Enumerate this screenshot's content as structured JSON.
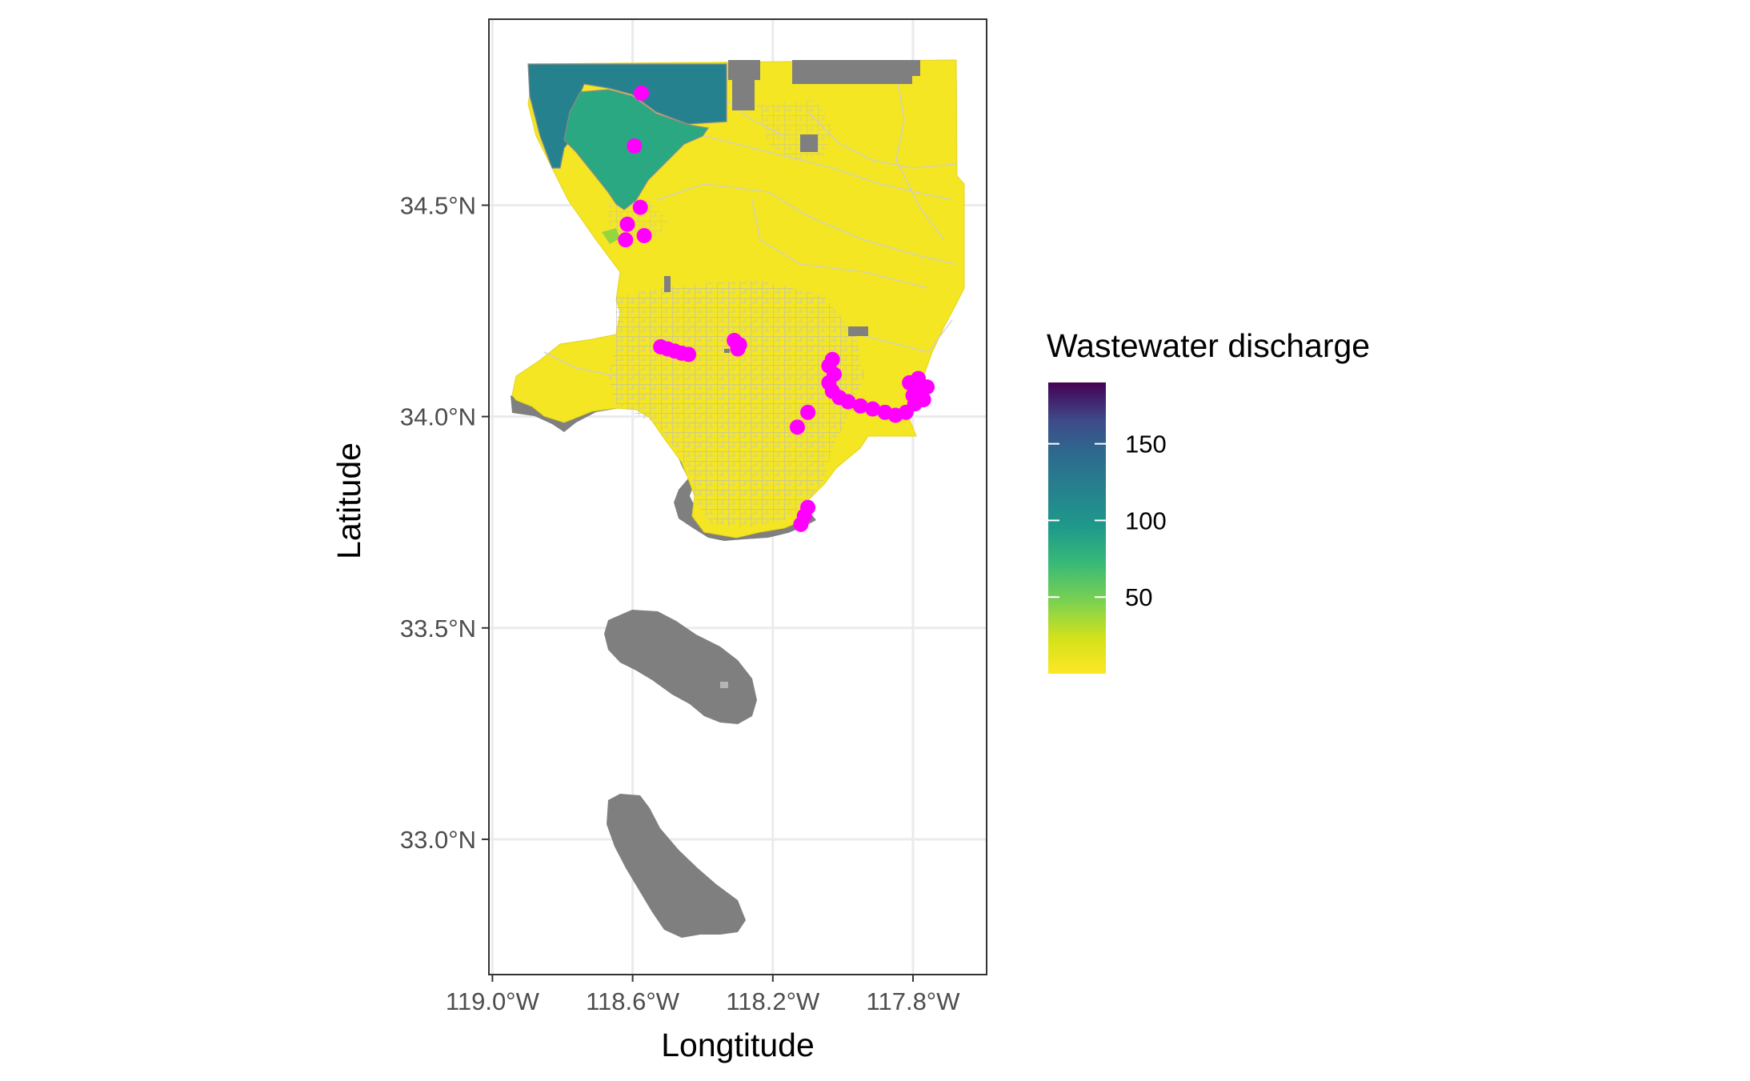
{
  "chart_data": {
    "type": "map",
    "title": "",
    "xlabel": "Longtitude",
    "ylabel": "Latitude",
    "x_ticks": [
      {
        "value": -119.0,
        "label": "119.0°W"
      },
      {
        "value": -118.6,
        "label": "118.6°W"
      },
      {
        "value": -118.2,
        "label": "118.2°W"
      },
      {
        "value": -117.8,
        "label": "117.8°W"
      }
    ],
    "y_ticks": [
      {
        "value": 34.5,
        "label": "34.5°N"
      },
      {
        "value": 34.0,
        "label": "34.0°N"
      },
      {
        "value": 33.5,
        "label": "33.5°N"
      },
      {
        "value": 33.0,
        "label": "33.0°N"
      }
    ],
    "xlim": [
      -119.01,
      -117.59
    ],
    "ylim": [
      32.68,
      34.94
    ],
    "grid": true,
    "legend": {
      "title": "Wastewater discharge",
      "position": "right",
      "scale": "viridis (reversed)",
      "range": [
        0,
        190
      ],
      "breaks": [
        {
          "value": 150,
          "label": "150"
        },
        {
          "value": 100,
          "label": "100"
        },
        {
          "value": 50,
          "label": "50"
        }
      ]
    },
    "region_fill_values": {
      "northwest_dark_zone": 120,
      "northwest_green_zone": 85,
      "small_green_patch": 40,
      "rest_of_county": 5
    },
    "no_data_color": "#7f7f7f",
    "point_color": "#ff00ff",
    "points": [
      {
        "lon": -118.575,
        "lat": 34.765
      },
      {
        "lon": -118.595,
        "lat": 34.64
      },
      {
        "lon": -118.578,
        "lat": 34.495
      },
      {
        "lon": -118.615,
        "lat": 34.455
      },
      {
        "lon": -118.567,
        "lat": 34.428
      },
      {
        "lon": -118.62,
        "lat": 34.418
      },
      {
        "lon": -118.52,
        "lat": 34.165
      },
      {
        "lon": -118.5,
        "lat": 34.16
      },
      {
        "lon": -118.48,
        "lat": 34.155
      },
      {
        "lon": -118.46,
        "lat": 34.15
      },
      {
        "lon": -118.44,
        "lat": 34.147
      },
      {
        "lon": -118.31,
        "lat": 34.18
      },
      {
        "lon": -118.295,
        "lat": 34.17
      },
      {
        "lon": -118.3,
        "lat": 34.16
      },
      {
        "lon": -118.03,
        "lat": 34.135
      },
      {
        "lon": -118.04,
        "lat": 34.12
      },
      {
        "lon": -118.025,
        "lat": 34.1
      },
      {
        "lon": -118.04,
        "lat": 34.08
      },
      {
        "lon": -118.03,
        "lat": 34.06
      },
      {
        "lon": -118.01,
        "lat": 34.045
      },
      {
        "lon": -117.985,
        "lat": 34.035
      },
      {
        "lon": -117.95,
        "lat": 34.025
      },
      {
        "lon": -117.915,
        "lat": 34.018
      },
      {
        "lon": -117.88,
        "lat": 34.01
      },
      {
        "lon": -117.85,
        "lat": 34.003
      },
      {
        "lon": -117.82,
        "lat": 34.01
      },
      {
        "lon": -117.795,
        "lat": 34.03
      },
      {
        "lon": -117.78,
        "lat": 34.06
      },
      {
        "lon": -117.785,
        "lat": 34.09
      },
      {
        "lon": -117.81,
        "lat": 34.08
      },
      {
        "lon": -117.76,
        "lat": 34.07
      },
      {
        "lon": -117.77,
        "lat": 34.04
      },
      {
        "lon": -117.8,
        "lat": 34.05
      },
      {
        "lon": -118.1,
        "lat": 34.01
      },
      {
        "lon": -118.13,
        "lat": 33.975
      },
      {
        "lon": -118.12,
        "lat": 33.745
      },
      {
        "lon": -118.11,
        "lat": 33.765
      },
      {
        "lon": -118.1,
        "lat": 33.785
      }
    ]
  }
}
